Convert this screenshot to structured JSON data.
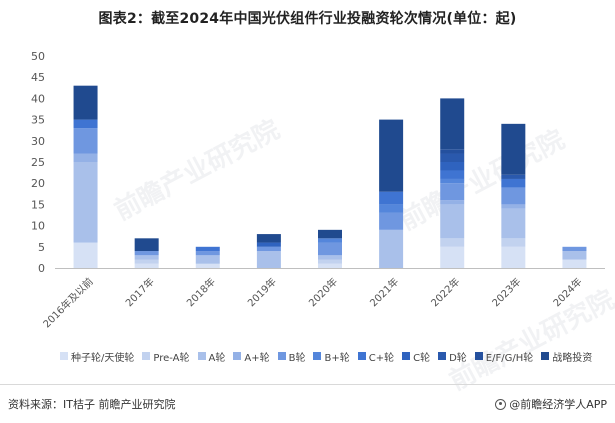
{
  "title": "图表2：截至2024年中国光伏组件行业投融资轮次情况(单位：起)",
  "source": "资料来源：IT桔子 前瞻产业研究院",
  "brand": "@前瞻经济学人APP",
  "watermark": "前瞻产业研究院",
  "chart_data": {
    "type": "bar",
    "stacked": true,
    "categories": [
      "2016年及以前",
      "2017年",
      "2018年",
      "2019年",
      "2020年",
      "2021年",
      "2022年",
      "2023年",
      "2024年"
    ],
    "ylim": [
      0,
      50
    ],
    "yticks": [
      0,
      5,
      10,
      15,
      20,
      25,
      30,
      35,
      40,
      45,
      50
    ],
    "grid": false,
    "legend_position": "bottom",
    "series": [
      {
        "name": "种子轮/天使轮",
        "color": "#d6e1f5",
        "values": [
          6,
          1,
          1,
          0,
          1,
          0,
          5,
          5,
          2
        ]
      },
      {
        "name": "Pre-A轮",
        "color": "#c2d2ef",
        "values": [
          0,
          1,
          0,
          0,
          1,
          0,
          2,
          2,
          0
        ]
      },
      {
        "name": "A轮",
        "color": "#a9c0ea",
        "values": [
          19,
          1,
          2,
          4,
          1,
          9,
          8,
          7,
          2
        ]
      },
      {
        "name": "A+轮",
        "color": "#94b1e6",
        "values": [
          2,
          0,
          0,
          0,
          0,
          0,
          1,
          1,
          0
        ]
      },
      {
        "name": "B轮",
        "color": "#6f97e0",
        "values": [
          6,
          1,
          1,
          1,
          3,
          4,
          4,
          4,
          1
        ]
      },
      {
        "name": "B+轮",
        "color": "#5486db",
        "values": [
          0,
          0,
          0,
          0,
          1,
          2,
          1,
          0,
          0
        ]
      },
      {
        "name": "C+轮",
        "color": "#3f74d2",
        "values": [
          2,
          0,
          1,
          0,
          0,
          3,
          2,
          2,
          0
        ]
      },
      {
        "name": "C轮",
        "color": "#2f63bf",
        "values": [
          0,
          0,
          0,
          1,
          0,
          0,
          2,
          0,
          0
        ]
      },
      {
        "name": "D轮",
        "color": "#2a59ad",
        "values": [
          0,
          0,
          0,
          0,
          0,
          0,
          2,
          1,
          0
        ]
      },
      {
        "name": "E/F/G/H轮",
        "color": "#24509e",
        "values": [
          0,
          0,
          0,
          0,
          0,
          0,
          1,
          0,
          0
        ]
      },
      {
        "name": "战略投资",
        "color": "#204a8f",
        "values": [
          8,
          3,
          0,
          2,
          2,
          17,
          12,
          12,
          0
        ]
      }
    ],
    "totals": [
      43,
      7,
      5,
      8,
      9,
      35,
      40,
      34,
      5
    ]
  }
}
